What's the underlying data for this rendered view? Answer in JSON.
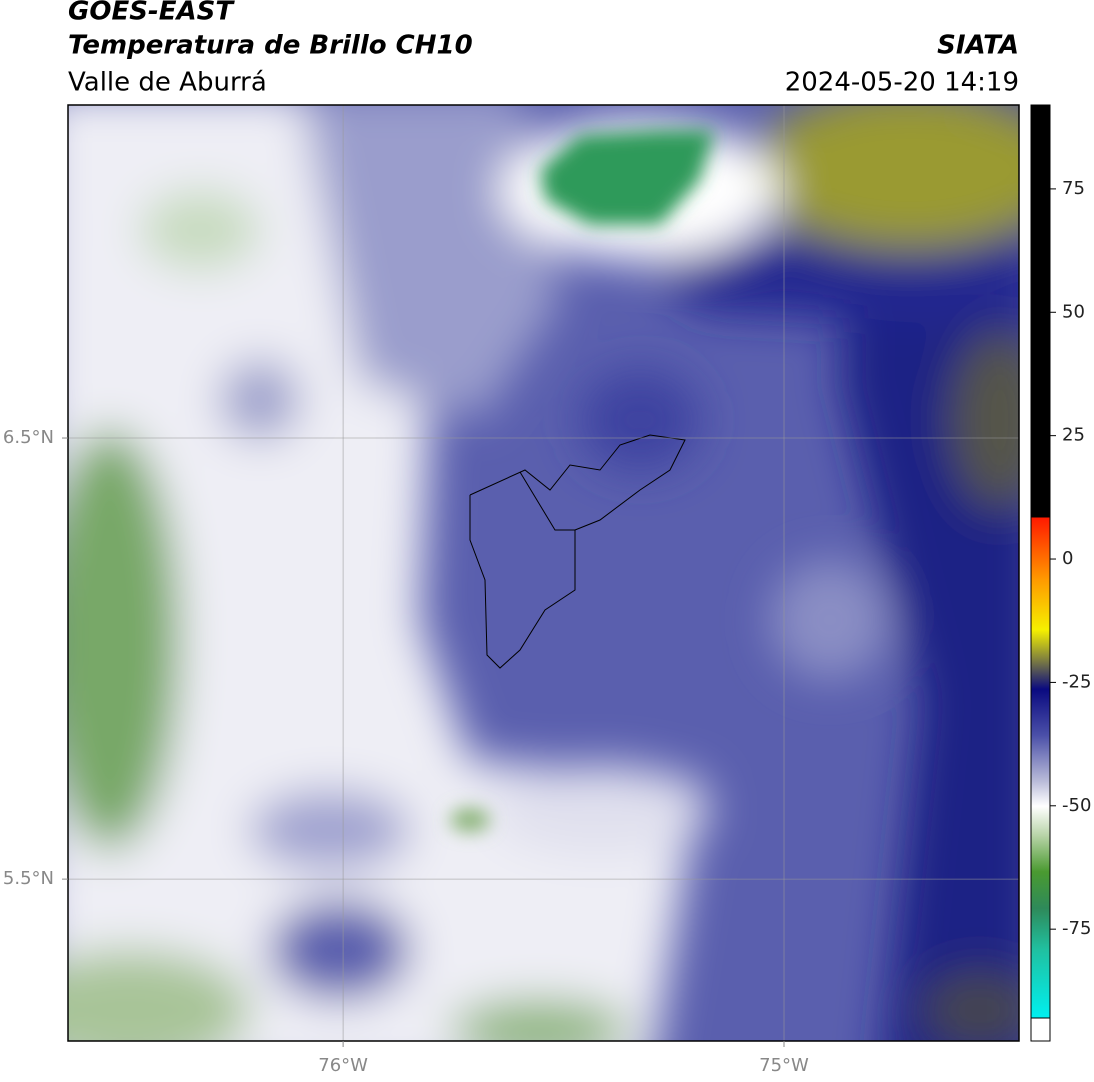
{
  "header": {
    "title": "GOES-EAST",
    "subtitle": "Temperatura de Brillo CH10",
    "region": "Valle de Aburrá",
    "source": "SIATA",
    "datetime": "2024-05-20 14:19"
  },
  "map": {
    "xlim": [
      -76.624,
      -74.467
    ],
    "ylim": [
      5.133,
      7.255
    ],
    "xticks": [
      {
        "value": -76,
        "label": "76°W"
      },
      {
        "value": -75,
        "label": "75°W"
      }
    ],
    "yticks": [
      {
        "value": 6.5,
        "label": "6.5°N"
      },
      {
        "value": 5.5,
        "label": "5.5°N"
      }
    ],
    "grid": true
  },
  "colorbar": {
    "lim": [
      -93,
      92
    ],
    "ticks": [
      75,
      50,
      25,
      0,
      -25,
      -50,
      -75
    ]
  }
}
